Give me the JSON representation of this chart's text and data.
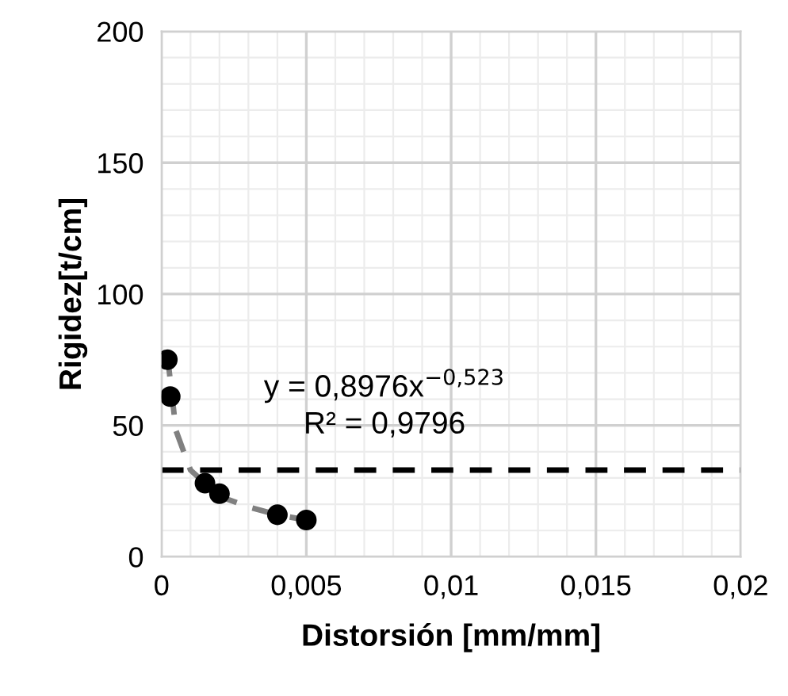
{
  "chart_data": {
    "type": "scatter",
    "xlabel": "Distorsión [mm/mm]",
    "ylabel": "Rigidez[t/cm]",
    "series": [
      {
        "color": "#000000",
        "x": [
          0.0002,
          0.0003,
          0.0015,
          0.002,
          0.004,
          0.005
        ],
        "values": [
          75,
          61,
          28,
          24,
          16,
          14
        ]
      },
      {
        "type": "line",
        "color": "#808080",
        "line_style": "dashed",
        "marker": "none",
        "x": [
          0.0002,
          0.0005,
          0.001,
          0.002,
          0.003,
          0.004,
          0.005
        ],
        "values": [
          77,
          48,
          33,
          23,
          19,
          16,
          14
        ]
      }
    ],
    "marker": "circle",
    "xlim": [
      0,
      0.02
    ],
    "xticks": [
      {
        "value": 0,
        "label": "0"
      },
      {
        "value": 0.005,
        "label": "0,005"
      },
      {
        "value": 0.01,
        "label": "0,01"
      },
      {
        "value": 0.015,
        "label": "0,015"
      },
      {
        "value": 0.02,
        "label": "0,02"
      }
    ],
    "ylim": [
      0,
      200
    ],
    "yticks": [
      0,
      50,
      100,
      150,
      200
    ],
    "grid": true,
    "ref_lines": [
      {
        "axis": "y",
        "value": 33,
        "color": "#000000",
        "line_style": "dashed"
      }
    ],
    "annotations": [
      "y = 0,8976x$^{−0,523}$",
      "R² = 0,9796"
    ]
  }
}
